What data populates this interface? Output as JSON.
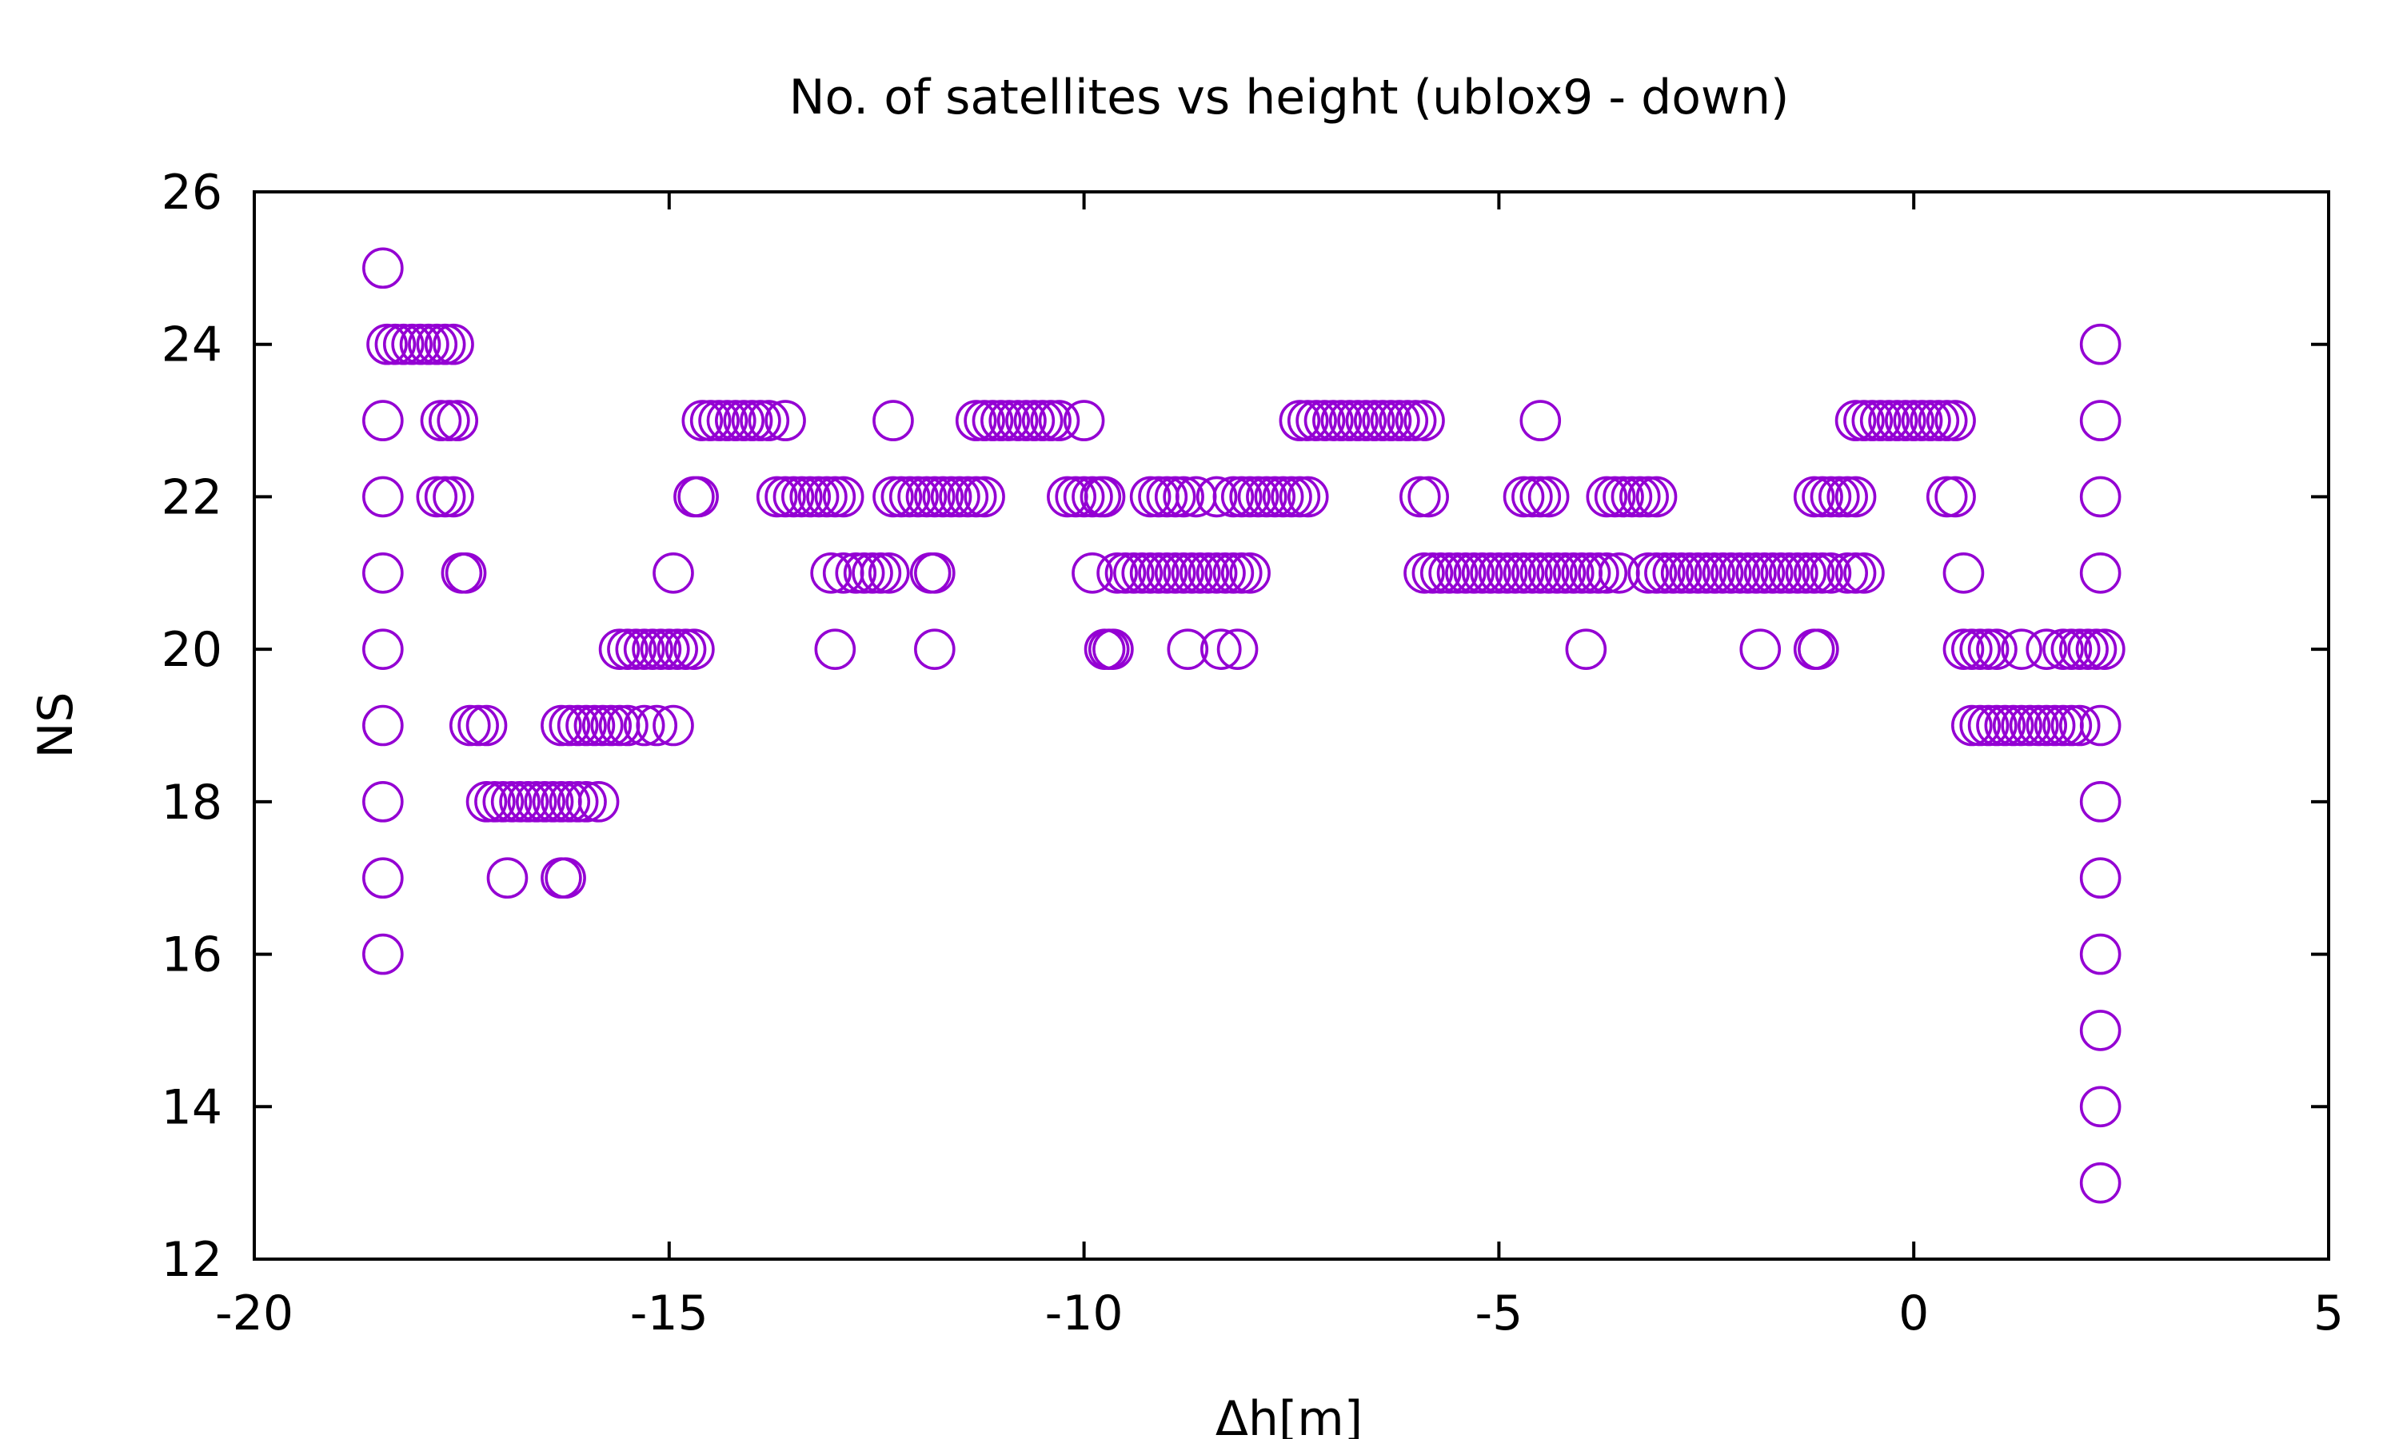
{
  "chart_data": {
    "type": "scatter",
    "title": "No. of satellites vs height (ublox9 - down)",
    "xlabel": "Δh[m]",
    "ylabel": "NS",
    "xlim": [
      -20,
      5
    ],
    "ylim": [
      12,
      26
    ],
    "xticks": [
      -20,
      -15,
      -10,
      -5,
      0,
      5
    ],
    "yticks": [
      12,
      14,
      16,
      18,
      20,
      22,
      24,
      26
    ],
    "xtick_labels": [
      "-20",
      "-15",
      "-10",
      "-5",
      "0",
      "5"
    ],
    "ytick_labels": [
      "12",
      "14",
      "16",
      "18",
      "20",
      "22",
      "24",
      "26"
    ],
    "grid": false,
    "legend": "none",
    "marker": "open-circle",
    "color": "#9400D3",
    "series": [
      {
        "points": [
          [
            -18.45,
            25
          ],
          [
            -18.45,
            23
          ],
          [
            -18.45,
            22
          ],
          [
            -18.45,
            21
          ],
          [
            -18.45,
            20
          ],
          [
            -18.45,
            19
          ],
          [
            -18.45,
            18
          ],
          [
            -18.45,
            17
          ],
          [
            -18.45,
            16
          ],
          [
            -18.4,
            24
          ],
          [
            -18.3,
            24
          ],
          [
            -18.2,
            24
          ],
          [
            -18.1,
            24
          ],
          [
            -18.0,
            24
          ],
          [
            -17.9,
            24
          ],
          [
            -17.8,
            24
          ],
          [
            -17.7,
            24
          ],
          [
            -17.6,
            24
          ],
          [
            -17.75,
            23
          ],
          [
            -17.65,
            23
          ],
          [
            -17.55,
            23
          ],
          [
            -17.8,
            22
          ],
          [
            -17.7,
            22
          ],
          [
            -17.6,
            22
          ],
          [
            -17.5,
            21
          ],
          [
            -17.45,
            21
          ],
          [
            -17.4,
            19
          ],
          [
            -17.3,
            19
          ],
          [
            -17.2,
            19
          ],
          [
            -17.2,
            18
          ],
          [
            -17.1,
            18
          ],
          [
            -17.0,
            18
          ],
          [
            -16.9,
            18
          ],
          [
            -16.8,
            18
          ],
          [
            -16.7,
            18
          ],
          [
            -16.6,
            18
          ],
          [
            -16.5,
            18
          ],
          [
            -16.4,
            18
          ],
          [
            -16.3,
            18
          ],
          [
            -16.2,
            18
          ],
          [
            -16.1,
            18
          ],
          [
            -16.0,
            18
          ],
          [
            -15.85,
            18
          ],
          [
            -16.95,
            17
          ],
          [
            -16.3,
            17
          ],
          [
            -16.25,
            17
          ],
          [
            -16.3,
            19
          ],
          [
            -16.2,
            19
          ],
          [
            -16.1,
            19
          ],
          [
            -16.0,
            19
          ],
          [
            -15.9,
            19
          ],
          [
            -15.8,
            19
          ],
          [
            -15.7,
            19
          ],
          [
            -15.6,
            19
          ],
          [
            -15.5,
            19
          ],
          [
            -15.3,
            19
          ],
          [
            -15.15,
            19
          ],
          [
            -14.95,
            19
          ],
          [
            -15.6,
            20
          ],
          [
            -15.5,
            20
          ],
          [
            -15.4,
            20
          ],
          [
            -15.3,
            20
          ],
          [
            -15.2,
            20
          ],
          [
            -15.1,
            20
          ],
          [
            -15.0,
            20
          ],
          [
            -14.9,
            20
          ],
          [
            -14.8,
            20
          ],
          [
            -14.7,
            20
          ],
          [
            -14.95,
            21
          ],
          [
            -14.7,
            22
          ],
          [
            -14.65,
            22
          ],
          [
            -14.6,
            23
          ],
          [
            -14.5,
            23
          ],
          [
            -14.4,
            23
          ],
          [
            -14.3,
            23
          ],
          [
            -14.2,
            23
          ],
          [
            -14.1,
            23
          ],
          [
            -14.0,
            23
          ],
          [
            -13.9,
            23
          ],
          [
            -13.8,
            23
          ],
          [
            -13.6,
            23
          ],
          [
            -13.7,
            22
          ],
          [
            -13.6,
            22
          ],
          [
            -13.5,
            22
          ],
          [
            -13.4,
            22
          ],
          [
            -13.3,
            22
          ],
          [
            -13.2,
            22
          ],
          [
            -13.1,
            22
          ],
          [
            -13.0,
            22
          ],
          [
            -12.9,
            22
          ],
          [
            -13.05,
            21
          ],
          [
            -12.9,
            21
          ],
          [
            -12.75,
            21
          ],
          [
            -12.65,
            21
          ],
          [
            -12.55,
            21
          ],
          [
            -12.45,
            21
          ],
          [
            -12.35,
            21
          ],
          [
            -13.0,
            20
          ],
          [
            -11.8,
            20
          ],
          [
            -11.85,
            21
          ],
          [
            -11.8,
            21
          ],
          [
            -12.3,
            23
          ],
          [
            -12.3,
            22
          ],
          [
            -12.2,
            22
          ],
          [
            -12.1,
            22
          ],
          [
            -12.0,
            22
          ],
          [
            -11.9,
            22
          ],
          [
            -11.8,
            22
          ],
          [
            -11.7,
            22
          ],
          [
            -11.6,
            22
          ],
          [
            -11.5,
            22
          ],
          [
            -11.4,
            22
          ],
          [
            -11.3,
            22
          ],
          [
            -11.2,
            22
          ],
          [
            -11.3,
            23
          ],
          [
            -11.2,
            23
          ],
          [
            -11.1,
            23
          ],
          [
            -11.0,
            23
          ],
          [
            -10.9,
            23
          ],
          [
            -10.8,
            23
          ],
          [
            -10.7,
            23
          ],
          [
            -10.6,
            23
          ],
          [
            -10.5,
            23
          ],
          [
            -10.4,
            23
          ],
          [
            -10.3,
            23
          ],
          [
            -10.0,
            23
          ],
          [
            -10.2,
            22
          ],
          [
            -10.1,
            22
          ],
          [
            -10.0,
            22
          ],
          [
            -9.9,
            22
          ],
          [
            -9.8,
            22
          ],
          [
            -9.75,
            22
          ],
          [
            -9.9,
            21
          ],
          [
            -9.6,
            21
          ],
          [
            -9.5,
            21
          ],
          [
            -9.4,
            21
          ],
          [
            -9.3,
            21
          ],
          [
            -9.2,
            21
          ],
          [
            -9.1,
            21
          ],
          [
            -9.0,
            21
          ],
          [
            -8.9,
            21
          ],
          [
            -8.8,
            21
          ],
          [
            -8.7,
            21
          ],
          [
            -8.6,
            21
          ],
          [
            -8.5,
            21
          ],
          [
            -8.4,
            21
          ],
          [
            -8.3,
            21
          ],
          [
            -8.2,
            21
          ],
          [
            -8.1,
            21
          ],
          [
            -8.0,
            21
          ],
          [
            -9.75,
            20
          ],
          [
            -9.7,
            20
          ],
          [
            -9.65,
            20
          ],
          [
            -8.75,
            20
          ],
          [
            -8.35,
            20
          ],
          [
            -8.15,
            20
          ],
          [
            -9.2,
            22
          ],
          [
            -9.1,
            22
          ],
          [
            -9.0,
            22
          ],
          [
            -8.9,
            22
          ],
          [
            -8.8,
            22
          ],
          [
            -8.65,
            22
          ],
          [
            -8.4,
            22
          ],
          [
            -8.2,
            22
          ],
          [
            -8.1,
            22
          ],
          [
            -8.0,
            22
          ],
          [
            -7.9,
            22
          ],
          [
            -7.8,
            22
          ],
          [
            -7.7,
            22
          ],
          [
            -7.6,
            22
          ],
          [
            -7.5,
            22
          ],
          [
            -7.4,
            22
          ],
          [
            -7.3,
            22
          ],
          [
            -7.4,
            23
          ],
          [
            -7.3,
            23
          ],
          [
            -7.2,
            23
          ],
          [
            -7.1,
            23
          ],
          [
            -7.0,
            23
          ],
          [
            -6.9,
            23
          ],
          [
            -6.8,
            23
          ],
          [
            -6.7,
            23
          ],
          [
            -6.6,
            23
          ],
          [
            -6.5,
            23
          ],
          [
            -6.4,
            23
          ],
          [
            -6.3,
            23
          ],
          [
            -6.2,
            23
          ],
          [
            -6.1,
            23
          ],
          [
            -6.0,
            23
          ],
          [
            -5.9,
            23
          ],
          [
            -5.95,
            22
          ],
          [
            -5.85,
            22
          ],
          [
            -5.9,
            21
          ],
          [
            -5.8,
            21
          ],
          [
            -5.7,
            21
          ],
          [
            -5.6,
            21
          ],
          [
            -5.5,
            21
          ],
          [
            -5.4,
            21
          ],
          [
            -5.3,
            21
          ],
          [
            -5.2,
            21
          ],
          [
            -5.1,
            21
          ],
          [
            -5.0,
            21
          ],
          [
            -4.9,
            21
          ],
          [
            -4.8,
            21
          ],
          [
            -4.7,
            21
          ],
          [
            -4.6,
            21
          ],
          [
            -4.5,
            23
          ],
          [
            -4.7,
            22
          ],
          [
            -4.6,
            22
          ],
          [
            -4.5,
            22
          ],
          [
            -4.4,
            22
          ],
          [
            -4.5,
            21
          ],
          [
            -4.4,
            21
          ],
          [
            -4.3,
            21
          ],
          [
            -4.2,
            21
          ],
          [
            -4.1,
            21
          ],
          [
            -4.0,
            21
          ],
          [
            -3.9,
            21
          ],
          [
            -3.8,
            21
          ],
          [
            -3.7,
            21
          ],
          [
            -3.55,
            21
          ],
          [
            -3.95,
            20
          ],
          [
            -3.7,
            22
          ],
          [
            -3.6,
            22
          ],
          [
            -3.5,
            22
          ],
          [
            -3.4,
            22
          ],
          [
            -3.3,
            22
          ],
          [
            -3.2,
            22
          ],
          [
            -3.1,
            22
          ],
          [
            -3.2,
            21
          ],
          [
            -3.1,
            21
          ],
          [
            -3.0,
            21
          ],
          [
            -2.9,
            21
          ],
          [
            -2.8,
            21
          ],
          [
            -2.7,
            21
          ],
          [
            -2.6,
            21
          ],
          [
            -2.5,
            21
          ],
          [
            -2.4,
            21
          ],
          [
            -2.3,
            21
          ],
          [
            -2.2,
            21
          ],
          [
            -2.1,
            21
          ],
          [
            -2.0,
            21
          ],
          [
            -1.9,
            21
          ],
          [
            -1.8,
            21
          ],
          [
            -1.7,
            21
          ],
          [
            -1.6,
            21
          ],
          [
            -1.5,
            21
          ],
          [
            -1.4,
            21
          ],
          [
            -1.3,
            21
          ],
          [
            -1.2,
            21
          ],
          [
            -1.1,
            21
          ],
          [
            -1.0,
            21
          ],
          [
            -1.85,
            20
          ],
          [
            -1.2,
            20
          ],
          [
            -1.15,
            20
          ],
          [
            -1.2,
            22
          ],
          [
            -1.1,
            22
          ],
          [
            -1.0,
            22
          ],
          [
            -0.9,
            22
          ],
          [
            -0.8,
            22
          ],
          [
            -0.7,
            22
          ],
          [
            -0.8,
            21
          ],
          [
            -0.7,
            21
          ],
          [
            -0.6,
            21
          ],
          [
            -0.7,
            23
          ],
          [
            -0.6,
            23
          ],
          [
            -0.5,
            23
          ],
          [
            -0.4,
            23
          ],
          [
            -0.3,
            23
          ],
          [
            -0.2,
            23
          ],
          [
            -0.1,
            23
          ],
          [
            0.0,
            23
          ],
          [
            0.1,
            23
          ],
          [
            0.2,
            23
          ],
          [
            0.3,
            23
          ],
          [
            0.4,
            23
          ],
          [
            0.5,
            23
          ],
          [
            0.4,
            22
          ],
          [
            0.5,
            22
          ],
          [
            0.6,
            21
          ],
          [
            0.6,
            20
          ],
          [
            0.7,
            20
          ],
          [
            0.8,
            20
          ],
          [
            0.9,
            20
          ],
          [
            1.0,
            20
          ],
          [
            1.3,
            20
          ],
          [
            1.6,
            20
          ],
          [
            0.7,
            19
          ],
          [
            0.8,
            19
          ],
          [
            0.9,
            19
          ],
          [
            1.0,
            19
          ],
          [
            1.1,
            19
          ],
          [
            1.2,
            19
          ],
          [
            1.3,
            19
          ],
          [
            1.4,
            19
          ],
          [
            1.5,
            19
          ],
          [
            1.6,
            19
          ],
          [
            1.7,
            19
          ],
          [
            1.8,
            19
          ],
          [
            1.9,
            19
          ],
          [
            2.0,
            19
          ],
          [
            1.8,
            20
          ],
          [
            1.9,
            20
          ],
          [
            2.0,
            20
          ],
          [
            2.1,
            20
          ],
          [
            2.2,
            20
          ],
          [
            2.3,
            20
          ],
          [
            2.25,
            24
          ],
          [
            2.25,
            23
          ],
          [
            2.25,
            22
          ],
          [
            2.25,
            21
          ],
          [
            2.25,
            19
          ],
          [
            2.25,
            18
          ],
          [
            2.25,
            17
          ],
          [
            2.25,
            16
          ],
          [
            2.25,
            15
          ],
          [
            2.25,
            14
          ],
          [
            2.25,
            13
          ]
        ]
      }
    ]
  }
}
